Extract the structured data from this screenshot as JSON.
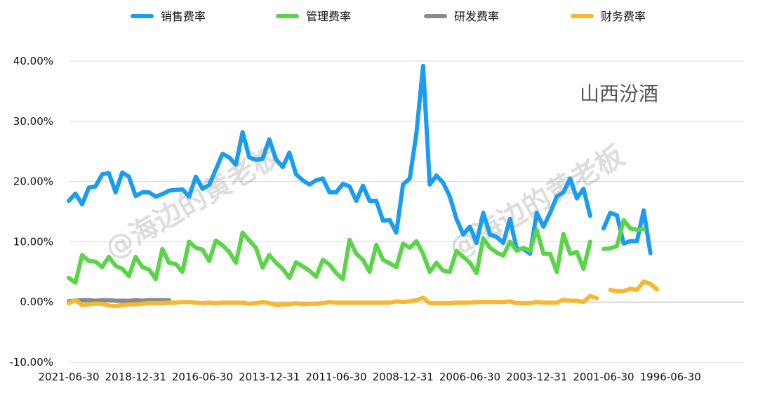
{
  "chart_data": {
    "type": "line",
    "title": "",
    "annotation": "山西汾酒",
    "watermark": "@海边的黄老板",
    "legend_position": "top",
    "ylim": [
      -0.1,
      0.4
    ],
    "y_ticks": [
      -0.1,
      0.0,
      0.1,
      0.2,
      0.3,
      0.4
    ],
    "y_tick_labels": [
      "-10.00%",
      "0.00%",
      "10.00%",
      "20.00%",
      "30.00%",
      "40.00%"
    ],
    "x_tick_labels": [
      "2021-06-30",
      "2018-12-31",
      "2016-06-30",
      "2013-12-31",
      "2011-06-30",
      "2008-12-31",
      "2006-06-30",
      "2003-12-31",
      "2001-06-30",
      "1996-06-30"
    ],
    "grid": "horizontal",
    "series": [
      {
        "name": "销售费率",
        "color": "#1a9cf0",
        "values": [
          0.168,
          0.18,
          0.162,
          0.19,
          0.192,
          0.212,
          0.214,
          0.182,
          0.215,
          0.208,
          0.176,
          0.182,
          0.182,
          0.175,
          0.179,
          0.185,
          0.186,
          0.187,
          0.175,
          0.208,
          0.188,
          0.194,
          0.22,
          0.246,
          0.24,
          0.228,
          0.282,
          0.24,
          0.236,
          0.238,
          0.27,
          0.237,
          0.224,
          0.248,
          0.212,
          0.202,
          0.195,
          0.202,
          0.205,
          0.182,
          0.182,
          0.196,
          0.192,
          0.168,
          0.193,
          0.168,
          0.168,
          0.135,
          0.136,
          0.115,
          0.195,
          0.205,
          0.28,
          0.392,
          0.195,
          0.21,
          0.198,
          0.175,
          0.138,
          0.112,
          0.125,
          0.098,
          0.148,
          0.112,
          0.108,
          0.098,
          0.138,
          0.088,
          0.088,
          0.08,
          0.148,
          0.125,
          0.148,
          0.175,
          0.182,
          0.205,
          0.172,
          0.188,
          0.143,
          null,
          0.122,
          0.148,
          0.144,
          0.097,
          0.101,
          0.101,
          0.152,
          0.081
        ]
      },
      {
        "name": "管理费率",
        "color": "#5cd44a",
        "values": [
          0.04,
          0.032,
          0.078,
          0.068,
          0.067,
          0.058,
          0.075,
          0.06,
          0.055,
          0.043,
          0.075,
          0.058,
          0.054,
          0.038,
          0.088,
          0.065,
          0.063,
          0.05,
          0.1,
          0.09,
          0.087,
          0.068,
          0.102,
          0.094,
          0.083,
          0.065,
          0.115,
          0.102,
          0.09,
          0.057,
          0.078,
          0.065,
          0.055,
          0.04,
          0.066,
          0.059,
          0.052,
          0.042,
          0.07,
          0.062,
          0.048,
          0.038,
          0.103,
          0.08,
          0.07,
          0.05,
          0.095,
          0.07,
          0.064,
          0.058,
          0.097,
          0.09,
          0.101,
          0.08,
          0.05,
          0.065,
          0.052,
          0.05,
          0.085,
          0.075,
          0.065,
          0.048,
          0.106,
          0.09,
          0.082,
          0.077,
          0.1,
          0.085,
          0.09,
          0.085,
          0.12,
          0.08,
          0.08,
          0.05,
          0.113,
          0.08,
          0.083,
          0.055,
          0.1,
          null,
          0.088,
          0.089,
          0.093,
          0.136,
          0.122,
          0.12,
          0.121,
          null
        ]
      },
      {
        "name": "研发费率",
        "color": "#8a8a8a",
        "values": [
          0.001,
          0.002,
          0.003,
          0.003,
          0.002,
          0.003,
          0.003,
          0.002,
          0.002,
          0.002,
          0.003,
          0.002,
          0.003,
          0.003,
          0.003,
          0.003
        ]
      },
      {
        "name": "财务费率",
        "color": "#f7b72e",
        "values": [
          -0.002,
          0.003,
          -0.005,
          -0.004,
          -0.003,
          -0.003,
          -0.006,
          -0.007,
          -0.005,
          -0.004,
          -0.004,
          -0.003,
          -0.002,
          -0.002,
          -0.002,
          -0.001,
          -0.001,
          0.0,
          0.0,
          -0.001,
          -0.002,
          -0.001,
          -0.002,
          -0.001,
          -0.001,
          -0.001,
          -0.001,
          -0.003,
          -0.002,
          0.0,
          -0.002,
          -0.005,
          -0.004,
          -0.004,
          -0.002,
          -0.004,
          -0.003,
          -0.003,
          -0.002,
          0.0,
          -0.001,
          -0.001,
          -0.001,
          -0.001,
          -0.001,
          -0.001,
          -0.001,
          -0.001,
          -0.001,
          0.001,
          0.0,
          0.001,
          0.003,
          0.007,
          -0.002,
          -0.002,
          -0.002,
          -0.002,
          -0.001,
          -0.001,
          -0.001,
          0.0,
          0.0,
          0.0,
          0.0,
          0.0,
          0.001,
          -0.002,
          -0.002,
          -0.002,
          0.0,
          -0.001,
          -0.001,
          -0.001,
          0.004,
          0.002,
          0.002,
          0.0,
          0.01,
          0.006,
          null,
          0.02,
          0.018,
          0.018,
          0.022,
          0.02,
          0.034,
          0.03,
          0.021
        ]
      }
    ]
  }
}
